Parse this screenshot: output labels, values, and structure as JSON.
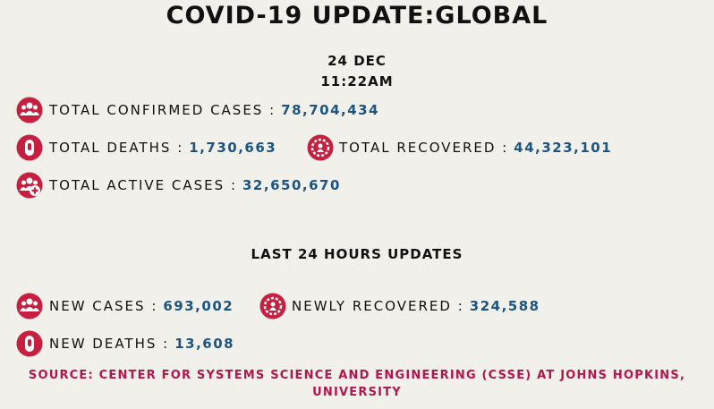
{
  "header": {
    "title": "COVID-19 UPDATE:GLOBAL",
    "date": "24 DEC",
    "time": "11:22AM"
  },
  "totals": [
    {
      "label": "TOTAL CONFIRMED CASES :",
      "value": "78,704,434"
    },
    {
      "label": "TOTAL DEATHS :",
      "value": "1,730,663"
    },
    {
      "label": "TOTAL RECOVERED :",
      "value": "44,323,101"
    },
    {
      "label": "TOTAL ACTIVE CASES :",
      "value": "32,650,670"
    }
  ],
  "last_24_hours": {
    "title": "LAST 24 HOURS UPDATES",
    "items": [
      {
        "label": "NEW CASES :",
        "value": "693,002"
      },
      {
        "label": "NEWLY RECOVERED :",
        "value": "324,588"
      },
      {
        "label": "NEW DEATHS :",
        "value": "13,608"
      }
    ]
  },
  "source": "SOURCE: CENTER FOR SYSTEMS SCIENCE AND ENGINEERING (CSSE) AT JOHNS HOPKINS, UNIVERSITY"
}
